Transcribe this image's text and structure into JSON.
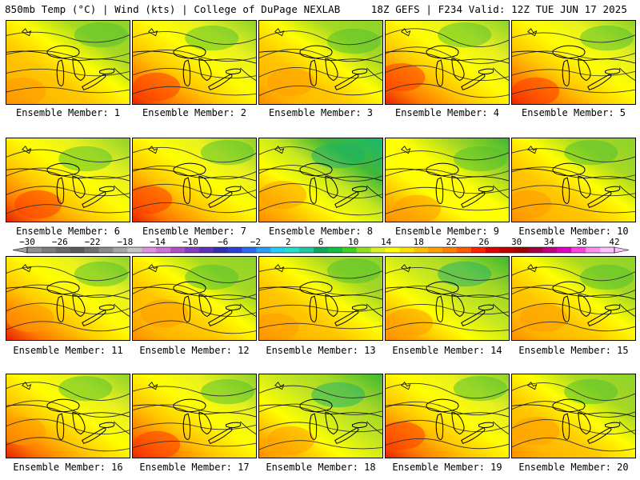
{
  "header": {
    "left": "850mb Temp (°C) | Wind (kts) | College of DuPage NEXLAB",
    "right": "18Z GEFS | F234 Valid: 12Z TUE JUN 17 2025"
  },
  "panels": [
    {
      "caption": "Ensemble Member: 1",
      "warmth": 0.55
    },
    {
      "caption": "Ensemble Member: 2",
      "warmth": 0.7
    },
    {
      "caption": "Ensemble Member: 3",
      "warmth": 0.55
    },
    {
      "caption": "Ensemble Member: 4",
      "warmth": 0.62
    },
    {
      "caption": "Ensemble Member: 5",
      "warmth": 0.72
    },
    {
      "caption": "Ensemble Member: 6",
      "warmth": 0.62
    },
    {
      "caption": "Ensemble Member: 7",
      "warmth": 0.62
    },
    {
      "caption": "Ensemble Member: 8",
      "warmth": 0.4
    },
    {
      "caption": "Ensemble Member: 9",
      "warmth": 0.52
    },
    {
      "caption": "Ensemble Member: 10",
      "warmth": 0.58
    },
    {
      "caption": "Ensemble Member: 11",
      "warmth": 0.6
    },
    {
      "caption": "Ensemble Member: 12",
      "warmth": 0.58
    },
    {
      "caption": "Ensemble Member: 13",
      "warmth": 0.55
    },
    {
      "caption": "Ensemble Member: 14",
      "warmth": 0.48
    },
    {
      "caption": "Ensemble Member: 15",
      "warmth": 0.58
    },
    {
      "caption": "Ensemble Member: 16",
      "warmth": 0.6
    },
    {
      "caption": "Ensemble Member: 17",
      "warmth": 0.62
    },
    {
      "caption": "Ensemble Member: 18",
      "warmth": 0.48
    },
    {
      "caption": "Ensemble Member: 19",
      "warmth": 0.72
    },
    {
      "caption": "Ensemble Member: 20",
      "warmth": 0.58
    }
  ],
  "colorbar": {
    "labels": [
      "−30",
      "−26",
      "−22",
      "−18",
      "−14",
      "−10",
      "−6",
      "−2",
      "2",
      "6",
      "10",
      "14",
      "18",
      "22",
      "26",
      "30",
      "34",
      "38",
      "42"
    ],
    "colors": [
      "#909090",
      "#7c7c7c",
      "#6a6a6a",
      "#5a5a5a",
      "#707070",
      "#8a8a8a",
      "#a6a6a6",
      "#c4c4c4",
      "#e090e0",
      "#d070d8",
      "#b050c8",
      "#8040c0",
      "#6030b8",
      "#3030b0",
      "#2a40d8",
      "#2a6af0",
      "#28a0f8",
      "#20d0f8",
      "#20e0c8",
      "#20c8a0",
      "#10a860",
      "#10c040",
      "#40d020",
      "#90e020",
      "#d8f020",
      "#ffff00",
      "#ffe000",
      "#ffc000",
      "#ffa000",
      "#ff8000",
      "#ff5a00",
      "#ff2000",
      "#e00000",
      "#c00000",
      "#a00000",
      "#a00040",
      "#c00080",
      "#e000c0",
      "#ff40e0",
      "#ff90f0",
      "#ffc0ff"
    ]
  }
}
